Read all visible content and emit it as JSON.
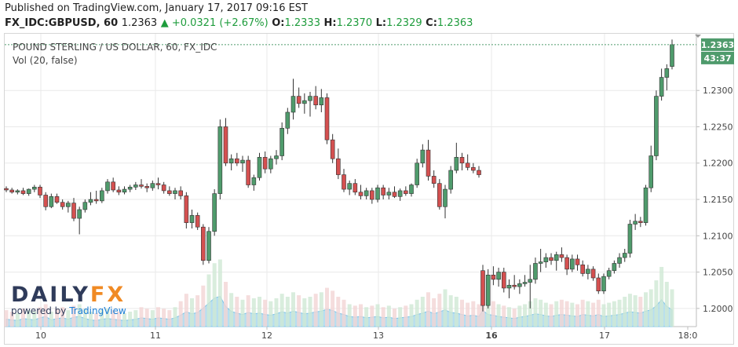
{
  "header": {
    "published": "Published on TradingView.com, January 17, 2017 09:16 EST",
    "symbol": "FX_IDC:GBPUSD, 60",
    "last": "1.2363",
    "change": "▲ +0.0321 (+2.67%)",
    "o_label": "O:",
    "o": "1.2333",
    "h_label": "H:",
    "h": "1.2370",
    "l_label": "L:",
    "l": "1.2329",
    "c_label": "C:",
    "c": "1.2363"
  },
  "chart_title": "POUND STERLING / US DOLLAR, 60, FX_IDC",
  "volume_label": "Vol (20, false)",
  "price_badge": "1.2363",
  "time_badge": "43:37",
  "logo": {
    "name_part1": "DAILY",
    "name_part2": "FX",
    "powered": "powered by ",
    "tv": "TradingView"
  },
  "chart_data": {
    "type": "candlestick",
    "x_tick_labels": [
      "10",
      "11",
      "12",
      "13",
      "16",
      "17",
      "18:0"
    ],
    "y_tick_labels": [
      "1.2000",
      "1.2050",
      "1.2100",
      "1.2150",
      "1.2200",
      "1.2250",
      "1.2300"
    ],
    "ylim": [
      1.1975,
      1.2378
    ],
    "last_price": 1.2363,
    "colors": {
      "up": "#4f9b6c",
      "down": "#d45050",
      "volume_area": "#a9d8ef",
      "volume_up": "#cfe9d4",
      "volume_down": "#f2d4d4"
    },
    "candles": [
      [
        1.2165,
        1.2168,
        1.216,
        1.2163
      ],
      [
        1.2163,
        1.2166,
        1.2158,
        1.216
      ],
      [
        1.216,
        1.2164,
        1.2157,
        1.2162
      ],
      [
        1.2162,
        1.2166,
        1.2156,
        1.2158
      ],
      [
        1.2158,
        1.2165,
        1.2155,
        1.2164
      ],
      [
        1.2164,
        1.217,
        1.216,
        1.2167
      ],
      [
        1.2167,
        1.217,
        1.2152,
        1.2156
      ],
      [
        1.2156,
        1.216,
        1.2135,
        1.214
      ],
      [
        1.214,
        1.2158,
        1.2138,
        1.2154
      ],
      [
        1.2154,
        1.2158,
        1.2144,
        1.2146
      ],
      [
        1.2146,
        1.215,
        1.2136,
        1.214
      ],
      [
        1.214,
        1.2148,
        1.2132,
        1.2145
      ],
      [
        1.2145,
        1.2152,
        1.212,
        1.2124
      ],
      [
        1.2124,
        1.214,
        1.2102,
        1.2136
      ],
      [
        1.2136,
        1.215,
        1.2132,
        1.2146
      ],
      [
        1.2146,
        1.216,
        1.2142,
        1.215
      ],
      [
        1.215,
        1.2162,
        1.2144,
        1.2148
      ],
      [
        1.2148,
        1.2166,
        1.2145,
        1.2162
      ],
      [
        1.2162,
        1.2178,
        1.2158,
        1.2174
      ],
      [
        1.2174,
        1.218,
        1.216,
        1.2163
      ],
      [
        1.2163,
        1.2168,
        1.2156,
        1.216
      ],
      [
        1.216,
        1.2168,
        1.2157,
        1.2164
      ],
      [
        1.2164,
        1.217,
        1.216,
        1.2167
      ],
      [
        1.2167,
        1.2174,
        1.2163,
        1.217
      ],
      [
        1.217,
        1.2178,
        1.2165,
        1.2168
      ],
      [
        1.2168,
        1.2172,
        1.216,
        1.2166
      ],
      [
        1.2166,
        1.2176,
        1.2162,
        1.2172
      ],
      [
        1.2172,
        1.218,
        1.2164,
        1.217
      ],
      [
        1.217,
        1.2174,
        1.2158,
        1.2162
      ],
      [
        1.2162,
        1.2168,
        1.2155,
        1.2158
      ],
      [
        1.2158,
        1.2166,
        1.215,
        1.2162
      ],
      [
        1.2162,
        1.2168,
        1.215,
        1.2155
      ],
      [
        1.2155,
        1.216,
        1.211,
        1.2118
      ],
      [
        1.2118,
        1.2136,
        1.211,
        1.2128
      ],
      [
        1.2128,
        1.2132,
        1.2108,
        1.2112
      ],
      [
        1.2112,
        1.2116,
        1.206,
        1.2066
      ],
      [
        1.2066,
        1.2112,
        1.2062,
        1.2106
      ],
      [
        1.2106,
        1.2164,
        1.21,
        1.2158
      ],
      [
        1.2158,
        1.226,
        1.215,
        1.225
      ],
      [
        1.225,
        1.2262,
        1.2196,
        1.22
      ],
      [
        1.22,
        1.2212,
        1.219,
        1.2206
      ],
      [
        1.2206,
        1.2214,
        1.2196,
        1.22
      ],
      [
        1.22,
        1.221,
        1.2188,
        1.2204
      ],
      [
        1.2204,
        1.221,
        1.2166,
        1.217
      ],
      [
        1.217,
        1.2184,
        1.2162,
        1.218
      ],
      [
        1.218,
        1.2214,
        1.2176,
        1.2208
      ],
      [
        1.2208,
        1.2216,
        1.2186,
        1.2192
      ],
      [
        1.2192,
        1.221,
        1.2186,
        1.2206
      ],
      [
        1.2206,
        1.2218,
        1.2198,
        1.221
      ],
      [
        1.221,
        1.2256,
        1.2204,
        1.2248
      ],
      [
        1.2248,
        1.2276,
        1.224,
        1.227
      ],
      [
        1.227,
        1.2316,
        1.226,
        1.2292
      ],
      [
        1.2292,
        1.2304,
        1.2276,
        1.2282
      ],
      [
        1.2282,
        1.2296,
        1.2268,
        1.2286
      ],
      [
        1.2286,
        1.2298,
        1.2264,
        1.2292
      ],
      [
        1.2292,
        1.2306,
        1.2274,
        1.228
      ],
      [
        1.228,
        1.2302,
        1.227,
        1.229
      ],
      [
        1.229,
        1.2296,
        1.2226,
        1.2232
      ],
      [
        1.2232,
        1.224,
        1.22,
        1.2206
      ],
      [
        1.2206,
        1.222,
        1.2178,
        1.2184
      ],
      [
        1.2184,
        1.2192,
        1.216,
        1.2164
      ],
      [
        1.2164,
        1.2176,
        1.2156,
        1.2172
      ],
      [
        1.2172,
        1.2178,
        1.2156,
        1.216
      ],
      [
        1.216,
        1.217,
        1.215,
        1.2155
      ],
      [
        1.2155,
        1.2166,
        1.215,
        1.2162
      ],
      [
        1.2162,
        1.2166,
        1.2144,
        1.215
      ],
      [
        1.215,
        1.217,
        1.2146,
        1.2166
      ],
      [
        1.2166,
        1.217,
        1.215,
        1.2156
      ],
      [
        1.2156,
        1.2166,
        1.215,
        1.216
      ],
      [
        1.216,
        1.2168,
        1.2152,
        1.2154
      ],
      [
        1.2154,
        1.2165,
        1.2148,
        1.2162
      ],
      [
        1.2162,
        1.2168,
        1.2155,
        1.2158
      ],
      [
        1.2158,
        1.2172,
        1.2154,
        1.217
      ],
      [
        1.217,
        1.2206,
        1.2166,
        1.22
      ],
      [
        1.22,
        1.2226,
        1.2194,
        1.2218
      ],
      [
        1.2218,
        1.2232,
        1.2176,
        1.2182
      ],
      [
        1.2182,
        1.219,
        1.2166,
        1.2172
      ],
      [
        1.2172,
        1.2178,
        1.2136,
        1.214
      ],
      [
        1.214,
        1.217,
        1.2124,
        1.2164
      ],
      [
        1.2164,
        1.2196,
        1.2158,
        1.219
      ],
      [
        1.219,
        1.2228,
        1.2186,
        1.2208
      ],
      [
        1.2208,
        1.2214,
        1.219,
        1.22
      ],
      [
        1.22,
        1.2212,
        1.219,
        1.2194
      ],
      [
        1.2194,
        1.22,
        1.2186,
        1.219
      ],
      [
        1.219,
        1.2196,
        1.218,
        1.2184
      ],
      [
        1.2052,
        1.206,
        1.1996,
        1.2004
      ],
      [
        1.2004,
        1.2054,
        1.2,
        1.2046
      ],
      [
        1.2046,
        1.2058,
        1.2032,
        1.204
      ],
      [
        1.204,
        1.2056,
        1.203,
        1.205
      ],
      [
        1.205,
        1.2056,
        1.2022,
        1.2028
      ],
      [
        1.2028,
        1.204,
        1.2014,
        1.2032
      ],
      [
        1.2032,
        1.2046,
        1.2026,
        1.203
      ],
      [
        1.203,
        1.204,
        1.202,
        1.2034
      ],
      [
        1.2034,
        1.2046,
        1.203,
        1.2036
      ],
      [
        1.2036,
        1.206,
        1.2,
        1.204
      ],
      [
        1.204,
        1.207,
        1.2034,
        1.2062
      ],
      [
        1.2062,
        1.2082,
        1.205,
        1.2064
      ],
      [
        1.2064,
        1.2076,
        1.2056,
        1.207
      ],
      [
        1.207,
        1.2076,
        1.206,
        1.2066
      ],
      [
        1.2066,
        1.2078,
        1.2052,
        1.2074
      ],
      [
        1.2074,
        1.2084,
        1.2064,
        1.207
      ],
      [
        1.207,
        1.2074,
        1.2046,
        1.2054
      ],
      [
        1.2054,
        1.2074,
        1.205,
        1.2068
      ],
      [
        1.2068,
        1.2074,
        1.2052,
        1.206
      ],
      [
        1.206,
        1.2066,
        1.2044,
        1.2048
      ],
      [
        1.2048,
        1.206,
        1.204,
        1.2054
      ],
      [
        1.2054,
        1.2058,
        1.2038,
        1.2042
      ],
      [
        1.2042,
        1.2048,
        1.202,
        1.2024
      ],
      [
        1.2024,
        1.2048,
        1.202,
        1.2044
      ],
      [
        1.2044,
        1.2056,
        1.204,
        1.2052
      ],
      [
        1.2052,
        1.2066,
        1.2048,
        1.2062
      ],
      [
        1.2062,
        1.2076,
        1.2056,
        1.207
      ],
      [
        1.207,
        1.2082,
        1.2064,
        1.2076
      ],
      [
        1.2076,
        1.2122,
        1.207,
        1.2116
      ],
      [
        1.2116,
        1.213,
        1.2108,
        1.212
      ],
      [
        1.212,
        1.2126,
        1.2112,
        1.2118
      ],
      [
        1.2118,
        1.217,
        1.2114,
        1.2166
      ],
      [
        1.2166,
        1.2224,
        1.216,
        1.221
      ],
      [
        1.221,
        1.23,
        1.2204,
        1.2292
      ],
      [
        1.2292,
        1.233,
        1.2286,
        1.2318
      ],
      [
        1.2318,
        1.2336,
        1.23,
        1.233
      ],
      [
        1.2333,
        1.237,
        1.2329,
        1.2363
      ]
    ],
    "volume": [
      0.22,
      0.2,
      0.18,
      0.24,
      0.22,
      0.2,
      0.26,
      0.3,
      0.2,
      0.24,
      0.26,
      0.22,
      0.28,
      0.3,
      0.24,
      0.2,
      0.18,
      0.22,
      0.24,
      0.22,
      0.2,
      0.18,
      0.2,
      0.22,
      0.26,
      0.24,
      0.22,
      0.26,
      0.24,
      0.22,
      0.26,
      0.34,
      0.44,
      0.38,
      0.42,
      0.55,
      0.7,
      0.85,
      0.9,
      0.6,
      0.45,
      0.4,
      0.36,
      0.42,
      0.38,
      0.4,
      0.36,
      0.34,
      0.38,
      0.44,
      0.4,
      0.46,
      0.42,
      0.38,
      0.4,
      0.44,
      0.46,
      0.52,
      0.48,
      0.4,
      0.36,
      0.3,
      0.28,
      0.3,
      0.26,
      0.28,
      0.3,
      0.26,
      0.28,
      0.24,
      0.26,
      0.28,
      0.3,
      0.36,
      0.4,
      0.46,
      0.38,
      0.44,
      0.5,
      0.42,
      0.4,
      0.36,
      0.32,
      0.34,
      0.3,
      0.48,
      0.36,
      0.34,
      0.3,
      0.28,
      0.26,
      0.24,
      0.28,
      0.3,
      0.34,
      0.38,
      0.36,
      0.32,
      0.3,
      0.34,
      0.36,
      0.34,
      0.32,
      0.3,
      0.36,
      0.34,
      0.32,
      0.36,
      0.3,
      0.32,
      0.34,
      0.36,
      0.4,
      0.44,
      0.42,
      0.4,
      0.46,
      0.5,
      0.62,
      0.8,
      0.6,
      0.5
    ]
  }
}
